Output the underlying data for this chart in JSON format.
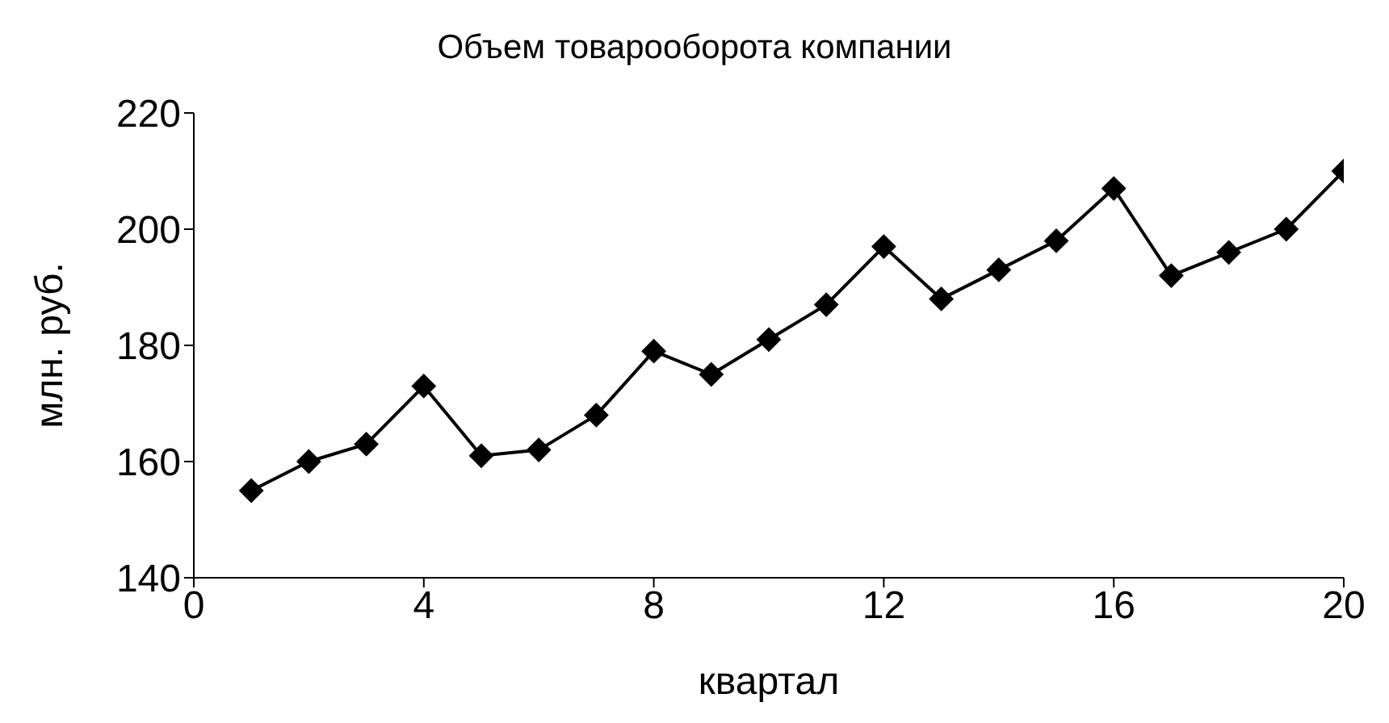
{
  "chart_data": {
    "type": "line",
    "title": "Объем товарооборота компании",
    "xlabel": "квартал",
    "ylabel": "млн. руб.",
    "x": [
      1,
      2,
      3,
      4,
      5,
      6,
      7,
      8,
      9,
      10,
      11,
      12,
      13,
      14,
      15,
      16,
      17,
      18,
      19,
      20
    ],
    "series": [
      {
        "color": "#000000",
        "values": [
          155,
          160,
          163,
          173,
          161,
          162,
          168,
          179,
          175,
          181,
          187,
          197,
          188,
          193,
          198,
          207,
          192,
          196,
          200,
          210
        ]
      }
    ],
    "xlim": [
      0,
      20
    ],
    "xticks": [
      0,
      4,
      8,
      12,
      16,
      20
    ],
    "ylim": [
      140,
      220
    ],
    "yticks": [
      140,
      160,
      180,
      200,
      220
    ],
    "grid": false,
    "legend": false,
    "marker": "diamond",
    "line_style": "solid"
  }
}
